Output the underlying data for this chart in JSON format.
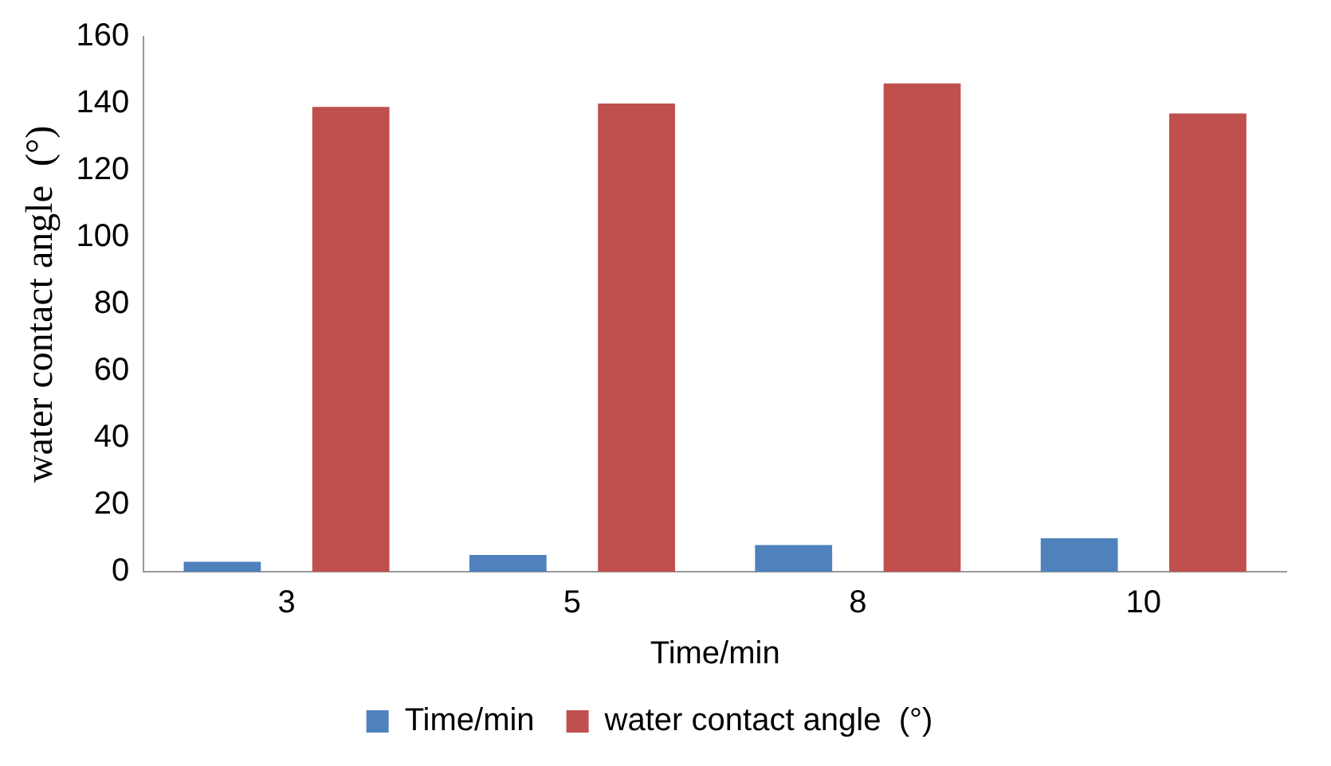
{
  "chart_data": {
    "type": "bar",
    "xlabel": "Time/min",
    "ylabel": "water contact angle  (°)",
    "categories": [
      "3",
      "5",
      "8",
      "10"
    ],
    "series": [
      {
        "name": "Time/min",
        "color": "#4f81bd",
        "values": [
          3,
          5,
          8,
          10
        ]
      },
      {
        "name": "water contact angle  (°)",
        "color": "#c0504d",
        "values": [
          139,
          140,
          146,
          137
        ]
      }
    ],
    "ylim": [
      0,
      160
    ],
    "yticks": [
      0,
      20,
      40,
      60,
      80,
      100,
      120,
      140,
      160
    ],
    "grid": false,
    "legend": "bottom"
  }
}
